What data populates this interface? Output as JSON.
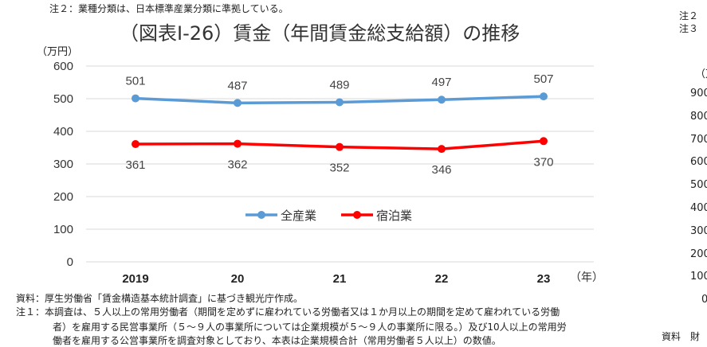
{
  "top_note": "注２：業種分類は、日本標準産業分類に準拠している。",
  "source": "資料：厚生労働省「賃金構造基本統計調査」に基づき観光庁作成。",
  "note1": [
    "注１：本調査は、５人以上の常用労働者（期間を定めずに雇われている労働者又は１か月以上の期間を定めて雇われている労働",
    "者）を雇用する民営事業所（５～９人の事業所については企業規模が５～９人の事業所に限る。）及び10人以上の常用労",
    "働者を雇用する公営事業所を調査対象としており、本表は企業規模合計（常用労働者５人以上）の数値。"
  ],
  "right_panel": {
    "notes": [
      "注２",
      "注３"
    ],
    "unit": "（万",
    "yticks": [
      "900",
      "800",
      "700",
      "600",
      "500",
      "400",
      "300",
      "200",
      "100",
      "0"
    ],
    "footer": "資料　財"
  },
  "chart_data": {
    "type": "line",
    "title": "（図表Ⅰ-26）賃金（年間賃金総支給額）の推移",
    "ylabel": "（万円）",
    "xlabel": "（年）",
    "categories": [
      "2019",
      "20",
      "21",
      "22",
      "23"
    ],
    "ylim": [
      0,
      600
    ],
    "yticks": [
      0,
      100,
      200,
      300,
      400,
      500,
      600
    ],
    "grid": true,
    "legend": "center",
    "series": [
      {
        "name": "全産業",
        "values": [
          501,
          487,
          489,
          497,
          507
        ],
        "color": "#5b9bd5"
      },
      {
        "name": "宿泊業",
        "values": [
          361,
          362,
          352,
          346,
          370
        ],
        "color": "#ff0000"
      }
    ]
  }
}
